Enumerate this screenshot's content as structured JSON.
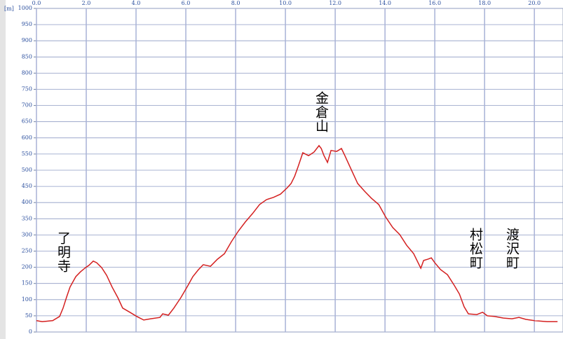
{
  "chart_data": {
    "type": "line",
    "y_unit": "[m]",
    "color": "#d42020",
    "x": [
      0,
      0.23,
      0.65,
      0.93,
      1.07,
      1.21,
      1.35,
      1.58,
      1.77,
      1.97,
      2.11,
      2.28,
      2.42,
      2.62,
      2.82,
      3.04,
      3.27,
      3.46,
      3.75,
      4.03,
      4.31,
      4.59,
      4.96,
      5.07,
      5.3,
      5.52,
      5.8,
      6.08,
      6.28,
      6.51,
      6.7,
      6.99,
      7.27,
      7.55,
      7.83,
      8.11,
      8.39,
      8.68,
      8.96,
      9.24,
      9.52,
      9.8,
      10.08,
      10.23,
      10.37,
      10.51,
      10.7,
      10.93,
      11.15,
      11.35,
      11.44,
      11.55,
      11.69,
      11.83,
      12.06,
      12.25,
      12.39,
      12.62,
      12.9,
      13.18,
      13.46,
      13.75,
      14.03,
      14.31,
      14.59,
      14.87,
      15.15,
      15.44,
      15.55,
      15.72,
      15.86,
      16.0,
      16.23,
      16.51,
      16.79,
      16.99,
      17.18,
      17.35,
      17.69,
      17.92,
      18.11,
      18.39,
      18.76,
      19.1,
      19.38,
      19.66,
      20.0,
      20.51,
      20.93
    ],
    "values": [
      35,
      32,
      35,
      48,
      74,
      108,
      139,
      171,
      186,
      199,
      206,
      219,
      214,
      199,
      175,
      139,
      106,
      74,
      61,
      48,
      37,
      41,
      45,
      56,
      52,
      74,
      106,
      143,
      171,
      193,
      208,
      203,
      225,
      242,
      279,
      312,
      340,
      366,
      394,
      409,
      416,
      426,
      446,
      459,
      481,
      511,
      554,
      545,
      556,
      576,
      567,
      545,
      524,
      561,
      558,
      567,
      545,
      506,
      459,
      435,
      413,
      394,
      355,
      323,
      301,
      268,
      242,
      197,
      221,
      225,
      229,
      214,
      193,
      177,
      143,
      117,
      78,
      56,
      54,
      61,
      50,
      48,
      43,
      41,
      45,
      39,
      35,
      32,
      32
    ],
    "xlim": [
      0,
      21.15
    ],
    "ylim": [
      0,
      1000
    ],
    "xticks": [
      {
        "value": 0,
        "label": "0.0"
      },
      {
        "value": 2,
        "label": "2.0"
      },
      {
        "value": 4,
        "label": "4.0"
      },
      {
        "value": 6,
        "label": "6.0"
      },
      {
        "value": 8,
        "label": "8.0"
      },
      {
        "value": 10,
        "label": "10.0"
      },
      {
        "value": 12,
        "label": "12.0"
      },
      {
        "value": 14,
        "label": "14.0"
      },
      {
        "value": 16,
        "label": "16.0"
      },
      {
        "value": 18,
        "label": "18.0"
      },
      {
        "value": 20,
        "label": "20.0"
      }
    ],
    "yticks": [
      0,
      50,
      100,
      150,
      200,
      250,
      300,
      350,
      400,
      450,
      500,
      550,
      600,
      650,
      700,
      750,
      800,
      850,
      900,
      950,
      1000
    ],
    "grid": true,
    "annotations": [
      "了明寺",
      "金倉山",
      "村松町",
      "渡沢町"
    ]
  }
}
